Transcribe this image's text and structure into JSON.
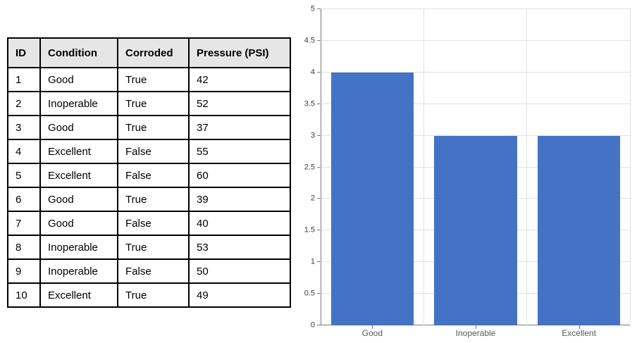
{
  "table": {
    "headers": [
      "ID",
      "Condition",
      "Corroded",
      "Pressure (PSI)"
    ],
    "rows": [
      [
        "1",
        "Good",
        "True",
        "42"
      ],
      [
        "2",
        "Inoperable",
        "True",
        "52"
      ],
      [
        "3",
        "Good",
        "True",
        "37"
      ],
      [
        "4",
        "Excellent",
        "False",
        "55"
      ],
      [
        "5",
        "Excellent",
        "False",
        "60"
      ],
      [
        "6",
        "Good",
        "True",
        "39"
      ],
      [
        "7",
        "Good",
        "False",
        "40"
      ],
      [
        "8",
        "Inoperable",
        "True",
        "53"
      ],
      [
        "9",
        "Inoperable",
        "False",
        "50"
      ],
      [
        "10",
        "Excellent",
        "True",
        "49"
      ]
    ]
  },
  "chart_data": {
    "type": "bar",
    "categories": [
      "Good",
      "Inoperable",
      "Excellent"
    ],
    "values": [
      4,
      3,
      3
    ],
    "title": "",
    "xlabel": "",
    "ylabel": "",
    "ylim": [
      0,
      5
    ],
    "yticks": [
      0,
      0.5,
      1,
      1.5,
      2,
      2.5,
      3,
      3.5,
      4,
      4.5,
      5
    ],
    "ytick_labels": [
      "0",
      "0.5",
      "1",
      "1.5",
      "2",
      "2.5",
      "3",
      "3.5",
      "4",
      "4.5",
      "5"
    ],
    "grid": true,
    "legend": false,
    "bar_width_fraction": 0.8
  },
  "colors": {
    "bar_fill": "#4472C4",
    "gridline": "#E2E2E2",
    "axis_line": "#7a7a7a",
    "table_header_bg": "#E7E6E6",
    "table_border": "#000000",
    "y_label_color": "#3b3b3b",
    "x_label_color": "#595959"
  }
}
